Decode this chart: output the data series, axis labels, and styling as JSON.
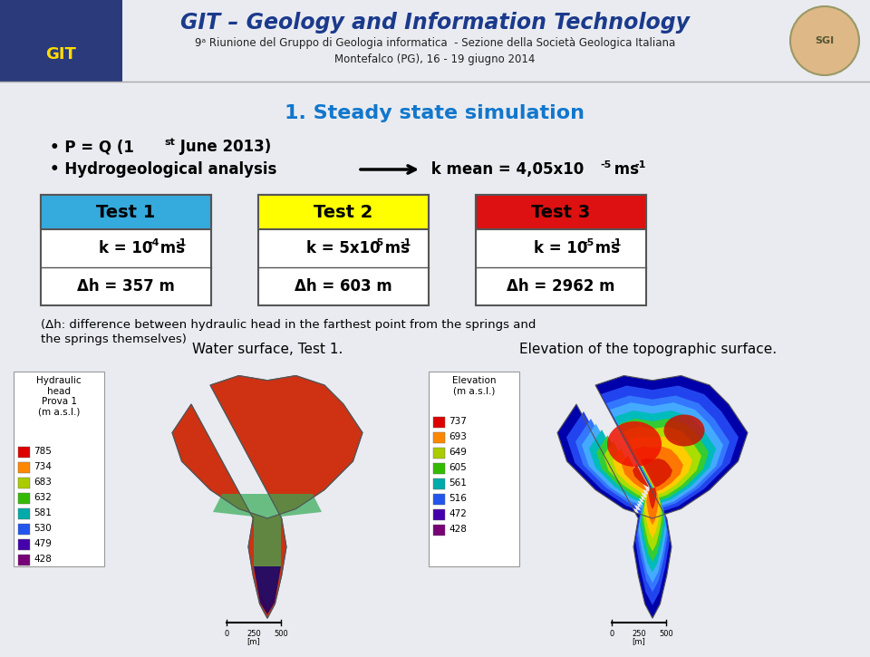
{
  "title": "GIT – Geology and Information Technology",
  "subtitle1": "9ᵃ Riunione del Gruppo di Geologia informatica  - Sezione della Società Geologica Italiana",
  "subtitle2": "Montefalco (PG), 16 - 19 giugno 2014",
  "section_title": "1. Steady state simulation",
  "test1_header": "Test 1",
  "test1_k_base": "k = 10",
  "test1_k_sup": "-4",
  "test1_k_unit": " ms",
  "test1_k_usup": "-1",
  "test1_dh": "Δh = 357 m",
  "test1_color": "#35AADD",
  "test2_header": "Test 2",
  "test2_k_base": "k = 5x10",
  "test2_k_sup": "-5",
  "test2_k_unit": " ms",
  "test2_k_usup": "-1",
  "test2_dh": "Δh = 603 m",
  "test2_color": "#FFFF00",
  "test3_header": "Test 3",
  "test3_k_base": "k = 10",
  "test3_k_sup": "-5",
  "test3_k_unit": " ms",
  "test3_k_usup": "-1",
  "test3_dh": "Δh = 2962 m",
  "test3_color": "#DD1111",
  "footnote1": "(Δh: difference between hydraulic head in the farthest point from the springs and",
  "footnote2": "the springs themselves)",
  "map_title1": "Water surface, Test 1.",
  "map_title2": "Elevation of the topographic surface.",
  "legend1_title": "Hydraulic\nhead\nProva 1\n(m a.s.l.)",
  "legend1_values": [
    "785",
    "734",
    "683",
    "632",
    "581",
    "530",
    "479",
    "428"
  ],
  "legend1_colors": [
    "#DD0000",
    "#FF8800",
    "#AACC00",
    "#33BB00",
    "#00AAAA",
    "#2255EE",
    "#4400AA",
    "#770077"
  ],
  "legend2_title": "Elevation\n(m a.s.l.)",
  "legend2_values": [
    "737",
    "693",
    "649",
    "605",
    "561",
    "516",
    "472",
    "428"
  ],
  "legend2_colors": [
    "#DD0000",
    "#FF8800",
    "#AACC00",
    "#33BB00",
    "#00AAAA",
    "#2255EE",
    "#4400AA",
    "#770077"
  ],
  "bg_color": "#EAEBF0",
  "header_bg": "#EAEBF0",
  "title_color": "#1A3A8C",
  "section_color": "#1177CC",
  "box_border": "#555555"
}
